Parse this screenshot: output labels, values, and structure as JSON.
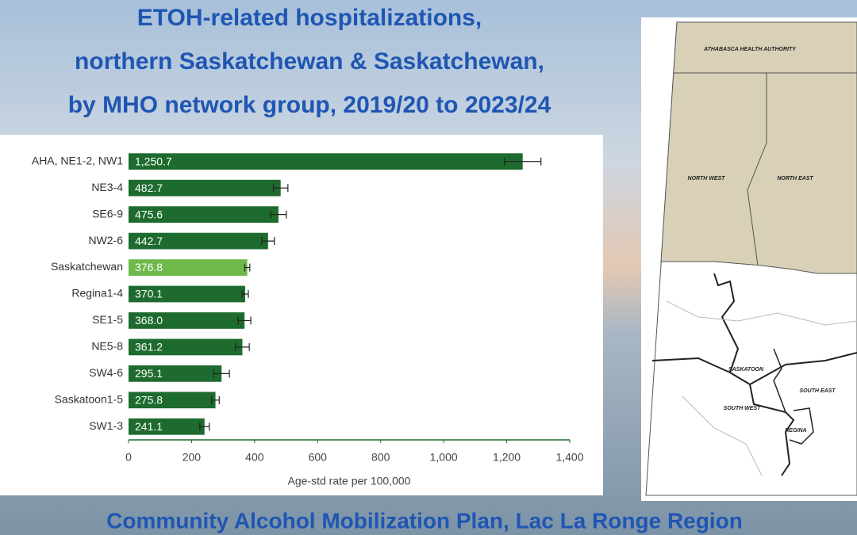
{
  "chart_data": {
    "type": "bar",
    "title": [
      "ETOH-related hospitalizations,",
      "northern Saskatchewan & Saskatchewan,",
      "by MHO network group, 2019/20 to 2023/24"
    ],
    "categories": [
      "AHA, NE1-2, NW1",
      "NE3-4",
      "SE6-9",
      "NW2-6",
      "Saskatchewan",
      "Regina1-4",
      "SE1-5",
      "NE5-8",
      "SW4-6",
      "Saskatoon1-5",
      "SW1-3"
    ],
    "values": [
      1250.7,
      482.7,
      475.6,
      442.7,
      376.8,
      370.1,
      368.0,
      361.2,
      295.1,
      275.8,
      241.1
    ],
    "value_labels": [
      "1,250.7",
      "482.7",
      "475.6",
      "442.7",
      "376.8",
      "370.1",
      "368.0",
      "361.2",
      "295.1",
      "275.8",
      "241.1"
    ],
    "errors": [
      58,
      23,
      25,
      20,
      8,
      10,
      20,
      22,
      25,
      12,
      15
    ],
    "colors": [
      "#1d6b2e",
      "#1d6b2e",
      "#1d6b2e",
      "#1d6b2e",
      "#6fb84c",
      "#1d6b2e",
      "#1d6b2e",
      "#1d6b2e",
      "#1d6b2e",
      "#1d6b2e",
      "#1d6b2e"
    ],
    "xlabel": "Age-std rate per 100,000",
    "xlim": [
      0,
      1400
    ],
    "xticks": [
      0,
      200,
      400,
      600,
      800,
      {
        "value": 1000,
        "label": "1,000"
      },
      {
        "value": 1200,
        "label": "1,200"
      },
      {
        "value": 1400,
        "label": "1,400"
      }
    ],
    "footer": "Community Alcohol Mobilization Plan, Lac La Ronge Region"
  },
  "map": {
    "labels": [
      "ATHABASCA HEALTH AUTHORITY",
      "NORTH WEST",
      "NORTH EAST",
      "SASKATOON",
      "SOUTH EAST",
      "SOUTH WEST",
      "REGINA"
    ]
  }
}
